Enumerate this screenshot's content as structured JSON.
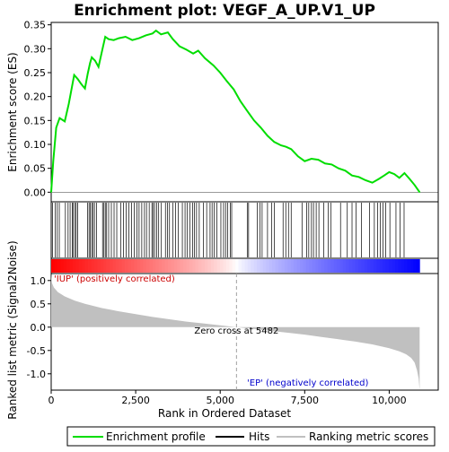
{
  "chart_data": {
    "type": "line",
    "title": "Enrichment plot: VEGF_A_UP.V1_UP",
    "es_panel": {
      "ylabel": "Enrichment score (ES)",
      "ylim": [
        -0.02,
        0.355
      ],
      "yticks": [
        0.0,
        0.05,
        0.1,
        0.15,
        0.2,
        0.25,
        0.3,
        0.35
      ],
      "ytick_labels": [
        "0.00",
        "0.05",
        "0.10",
        "0.15",
        "0.20",
        "0.25",
        "0.30",
        "0.35"
      ],
      "series_name": "Enrichment profile",
      "color": "#00dd00",
      "x": [
        0,
        60,
        150,
        250,
        400,
        520,
        600,
        680,
        780,
        900,
        1000,
        1080,
        1150,
        1200,
        1300,
        1400,
        1520,
        1600,
        1700,
        1850,
        2000,
        2200,
        2400,
        2600,
        2800,
        3000,
        3100,
        3250,
        3450,
        3600,
        3800,
        4000,
        4200,
        4350,
        4550,
        4800,
        5000,
        5200,
        5400,
        5600,
        5800,
        6000,
        6200,
        6400,
        6600,
        6800,
        6950,
        7100,
        7300,
        7500,
        7700,
        7900,
        8100,
        8300,
        8500,
        8700,
        8900,
        9100,
        9300,
        9500,
        9700,
        9850,
        10000,
        10150,
        10300,
        10450,
        10600,
        10750,
        10900
      ],
      "y": [
        0.0,
        0.065,
        0.135,
        0.155,
        0.148,
        0.185,
        0.215,
        0.245,
        0.237,
        0.225,
        0.217,
        0.248,
        0.27,
        0.282,
        0.275,
        0.262,
        0.3,
        0.325,
        0.32,
        0.318,
        0.322,
        0.325,
        0.318,
        0.322,
        0.328,
        0.332,
        0.338,
        0.33,
        0.334,
        0.32,
        0.305,
        0.298,
        0.29,
        0.296,
        0.28,
        0.265,
        0.25,
        0.232,
        0.215,
        0.19,
        0.17,
        0.15,
        0.135,
        0.118,
        0.105,
        0.098,
        0.095,
        0.09,
        0.075,
        0.065,
        0.07,
        0.068,
        0.06,
        0.058,
        0.05,
        0.045,
        0.035,
        0.032,
        0.025,
        0.02,
        0.028,
        0.035,
        0.042,
        0.038,
        0.03,
        0.04,
        0.028,
        0.015,
        0.0
      ]
    },
    "hits_panel": {
      "series_name": "Hits",
      "positions": [
        40,
        120,
        180,
        240,
        420,
        500,
        560,
        620,
        650,
        700,
        740,
        780,
        1080,
        1120,
        1160,
        1200,
        1240,
        1280,
        1340,
        1520,
        1560,
        1600,
        1640,
        1700,
        1780,
        1860,
        1940,
        2060,
        2140,
        2220,
        2300,
        2380,
        2460,
        2540,
        2600,
        2680,
        2760,
        2820,
        2900,
        2980,
        3020,
        3060,
        3120,
        3180,
        3260,
        3380,
        3440,
        3500,
        3600,
        3680,
        3760,
        3880,
        3960,
        4020,
        4100,
        4180,
        4240,
        4300,
        4380,
        4500,
        4600,
        4700,
        4760,
        4820,
        4900,
        5020,
        5100,
        5160,
        5220,
        5300,
        5340,
        5800,
        5840,
        6100,
        6180,
        6240,
        6400,
        6520,
        6600,
        6860,
        6940,
        7020,
        7100,
        7420,
        7560,
        7620,
        7700,
        7760,
        7840,
        7920,
        8060,
        8200,
        8280,
        8560,
        8760,
        8900,
        9020,
        9180,
        9420,
        9560,
        9660,
        9740,
        9820,
        9900,
        10020,
        10200,
        10320,
        10440
      ]
    },
    "rank_panel": {
      "xlabel": "Rank in Ordered Dataset",
      "ylabel": "Ranked list metric (Signal2Noise)",
      "xlim": [
        0,
        11450
      ],
      "ylim": [
        -1.35,
        1.15
      ],
      "xticks": [
        0,
        2500,
        5000,
        7500,
        10000
      ],
      "xtick_labels": [
        "0",
        "2,500",
        "5,000",
        "7,500",
        "10,000"
      ],
      "yticks": [
        1.0,
        0.5,
        0.0,
        -0.5,
        -1.0
      ],
      "ytick_labels": [
        "1.0",
        "0.5",
        "0.0",
        "-0.5",
        "-1.0"
      ],
      "series_name": "Ranking metric scores",
      "n_genes": 10900,
      "zero_cross": 5482,
      "zero_cross_label": "Zero cross at 5482",
      "pos_label": "'IUP' (positively correlated)",
      "neg_label": "'EP' (negatively correlated)",
      "metric_x": [
        0,
        20,
        80,
        200,
        400,
        700,
        1000,
        1500,
        2000,
        2500,
        3000,
        3500,
        4000,
        4500,
        5000,
        5482,
        6000,
        6500,
        7000,
        7500,
        8000,
        8500,
        9000,
        9500,
        10000,
        10300,
        10500,
        10650,
        10750,
        10820,
        10870,
        10899
      ],
      "metric_y": [
        1.15,
        0.95,
        0.85,
        0.75,
        0.66,
        0.57,
        0.5,
        0.41,
        0.34,
        0.28,
        0.22,
        0.17,
        0.12,
        0.08,
        0.04,
        0.0,
        -0.04,
        -0.08,
        -0.12,
        -0.16,
        -0.21,
        -0.26,
        -0.31,
        -0.37,
        -0.45,
        -0.52,
        -0.58,
        -0.66,
        -0.76,
        -0.92,
        -1.1,
        -1.35
      ]
    },
    "legend": {
      "position": "bottom",
      "entries": [
        "Enrichment profile",
        "Hits",
        "Ranking metric scores"
      ]
    }
  }
}
